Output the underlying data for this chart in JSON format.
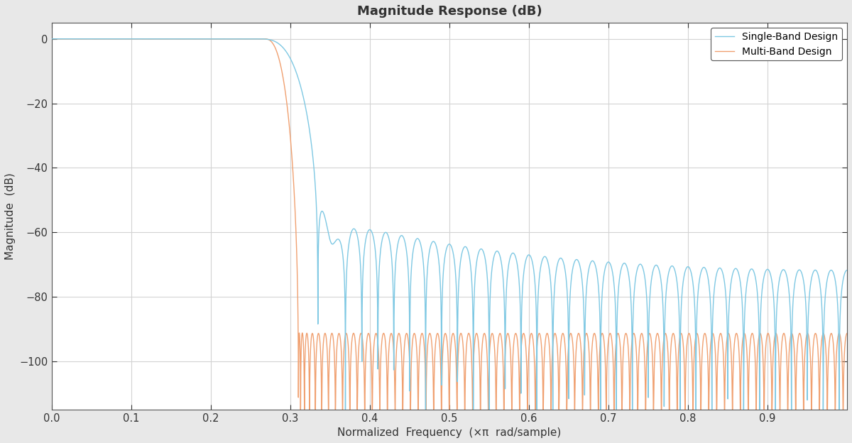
{
  "title": "Magnitude Response (dB)",
  "xlabel": "Normalized  Frequency  (×π  rad/sample)",
  "ylabel": "Magnitude  (dB)",
  "single_band_color": "#7EC8E3",
  "multi_band_color": "#F0A070",
  "xlim": [
    0,
    1.0
  ],
  "ylim": [
    -115,
    5
  ],
  "yticks": [
    0,
    -20,
    -40,
    -60,
    -80,
    -100
  ],
  "xticks": [
    0,
    0.1,
    0.2,
    0.3,
    0.4,
    0.5,
    0.6,
    0.7,
    0.8,
    0.9
  ],
  "legend_labels": [
    "Single-Band Design",
    "Multi-Band Design"
  ],
  "bg_color": "#E8E8E8",
  "axes_bg_color": "#FFFFFF",
  "grid_color": "#D3D3D3",
  "cutoff_single": 0.3,
  "cutoff_multi": 0.29,
  "filter_order_single": 100,
  "filter_order_multi": 200,
  "line_width": 1.0
}
